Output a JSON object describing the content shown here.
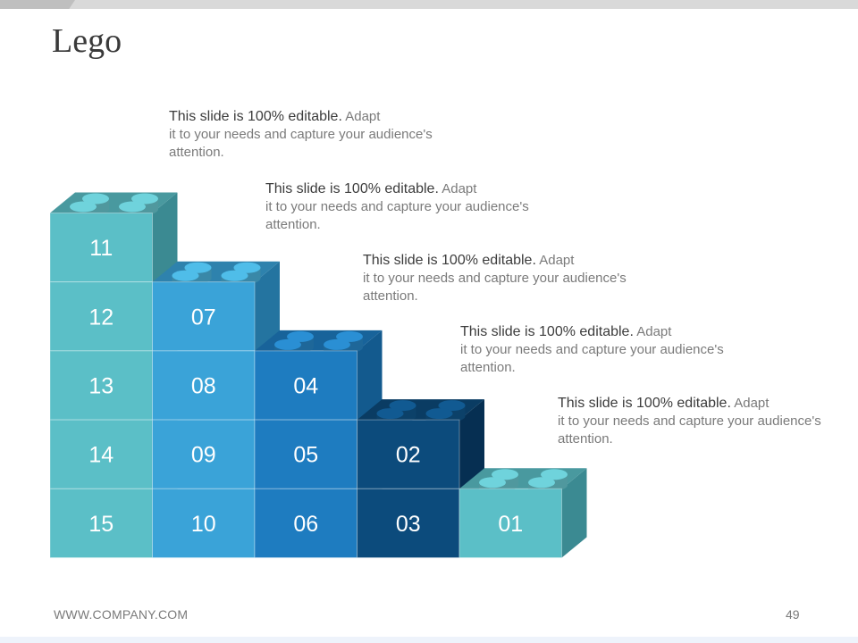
{
  "slide": {
    "title": "Lego",
    "footer_url": "WWW.COMPANY.COM",
    "page_number": "49"
  },
  "captions": [
    {
      "lead": "This slide is 100% editable.",
      "body_inline": " Adapt",
      "body_rest": "it to your needs and capture your audience's attention."
    },
    {
      "lead": "This slide is 100% editable.",
      "body_inline": " Adapt",
      "body_rest": "it to your needs and capture your audience's attention."
    },
    {
      "lead": "This slide is 100% editable.",
      "body_inline": " Adapt",
      "body_rest": "it to your needs and capture your audience's attention."
    },
    {
      "lead": "This slide is 100% editable.",
      "body_inline": " Adapt",
      "body_rest": "it to your needs and capture your audience's attention."
    },
    {
      "lead": "This slide is 100% editable.",
      "body_inline": " Adapt",
      "body_rest": "it to your needs and capture your audience's attention."
    }
  ],
  "lego_columns": [
    {
      "labels": [
        "11",
        "12",
        "13",
        "14",
        "15"
      ],
      "color": "#5bbfc7",
      "side": "#3b8a92",
      "stud": "#6fd3dc"
    },
    {
      "labels": [
        "07",
        "08",
        "09",
        "10"
      ],
      "color": "#3aa3d8",
      "side": "#2474a0",
      "stud": "#4fbde9"
    },
    {
      "labels": [
        "04",
        "05",
        "06"
      ],
      "color": "#1e7cc0",
      "side": "#135a8e",
      "stud": "#2a8fd4"
    },
    {
      "labels": [
        "02",
        "03"
      ],
      "color": "#0c4b7c",
      "side": "#062f52",
      "stud": "#115a92"
    },
    {
      "labels": [
        "01"
      ],
      "color": "#5bbfc7",
      "side": "#3b8a92",
      "stud": "#6fd3dc"
    }
  ],
  "colors": {
    "text_dark": "#3c3c3c",
    "text_muted": "#7a7a7a",
    "label_text": "#ffffff"
  }
}
